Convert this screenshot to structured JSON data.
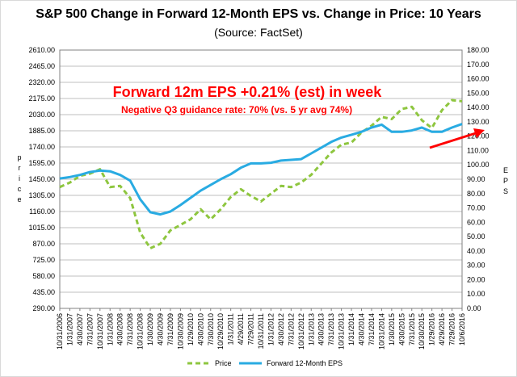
{
  "chart_data": {
    "type": "line",
    "title": "S&P 500 Change in Forward 12-Month EPS vs. Change in Price: 10 Years",
    "subtitle": "(Source: FactSet)",
    "ylabel_left": "Price",
    "ylabel_right": "EPS",
    "ylim_left": [
      290,
      2610
    ],
    "ylim_right": [
      0,
      180
    ],
    "yticks_left": [
      "2610.00",
      "2465.00",
      "2320.00",
      "2175.00",
      "2030.00",
      "1885.00",
      "1740.00",
      "1595.00",
      "1450.00",
      "1305.00",
      "1160.00",
      "1015.00",
      "870.00",
      "725.00",
      "580.00",
      "435.00",
      "290.00"
    ],
    "yticks_right": [
      "180.00",
      "170.00",
      "160.00",
      "150.00",
      "140.00",
      "130.00",
      "120.00",
      "110.00",
      "100.00",
      "90.00",
      "80.00",
      "70.00",
      "60.00",
      "50.00",
      "40.00",
      "30.00",
      "20.00",
      "10.00",
      "0.00"
    ],
    "categories": [
      "10/31/2006",
      "1/31/2007",
      "4/30/2007",
      "7/31/2007",
      "10/31/2007",
      "1/31/2008",
      "4/30/2008",
      "7/31/2008",
      "10/31/2008",
      "1/30/2009",
      "4/30/2009",
      "7/31/2009",
      "10/30/2009",
      "1/29/2010",
      "4/30/2010",
      "7/30/2010",
      "10/29/2010",
      "1/31/2011",
      "4/29/2011",
      "7/29/2011",
      "10/31/2011",
      "1/31/2012",
      "4/30/2012",
      "7/31/2012",
      "10/31/2012",
      "1/31/2013",
      "4/30/2013",
      "7/31/2013",
      "10/31/2013",
      "1/31/2014",
      "4/30/2014",
      "7/31/2014",
      "10/31/2014",
      "1/30/2015",
      "4/30/2015",
      "7/31/2015",
      "10/30/2015",
      "1/29/2016",
      "4/29/2016",
      "7/29/2016",
      "10/6/2016"
    ],
    "series": [
      {
        "name": "Price",
        "axis": "left",
        "color": "#8ec63f",
        "values": [
          1380,
          1420,
          1480,
          1500,
          1540,
          1380,
          1390,
          1280,
          970,
          830,
          870,
          990,
          1040,
          1090,
          1180,
          1090,
          1180,
          1290,
          1360,
          1300,
          1250,
          1320,
          1390,
          1380,
          1420,
          1490,
          1590,
          1690,
          1760,
          1780,
          1870,
          1930,
          2010,
          1990,
          2080,
          2100,
          1980,
          1910,
          2070,
          2160,
          2150
        ]
      },
      {
        "name": "Forward 12-Month EPS",
        "axis": "right",
        "color": "#29abe2",
        "values": [
          90.5,
          91.5,
          93,
          95,
          96,
          95.5,
          93,
          89,
          76,
          67,
          65.5,
          67.5,
          72,
          77,
          82,
          86,
          90,
          93.5,
          98,
          101,
          101,
          101.5,
          103,
          103.5,
          104,
          108,
          112,
          116,
          119,
          121,
          123,
          126,
          128,
          123,
          123,
          124,
          126,
          123,
          123,
          126,
          128.5
        ]
      }
    ],
    "legend": {
      "position": "bottom-center"
    },
    "grid": "horizontal",
    "annotations": {
      "headline": "Forward 12m EPS +0.21% (est) in week",
      "subline": "Negative Q3 guidance rate: 70% (vs. 5 yr avg 74%)"
    },
    "annotation_color": "#ff0000"
  }
}
